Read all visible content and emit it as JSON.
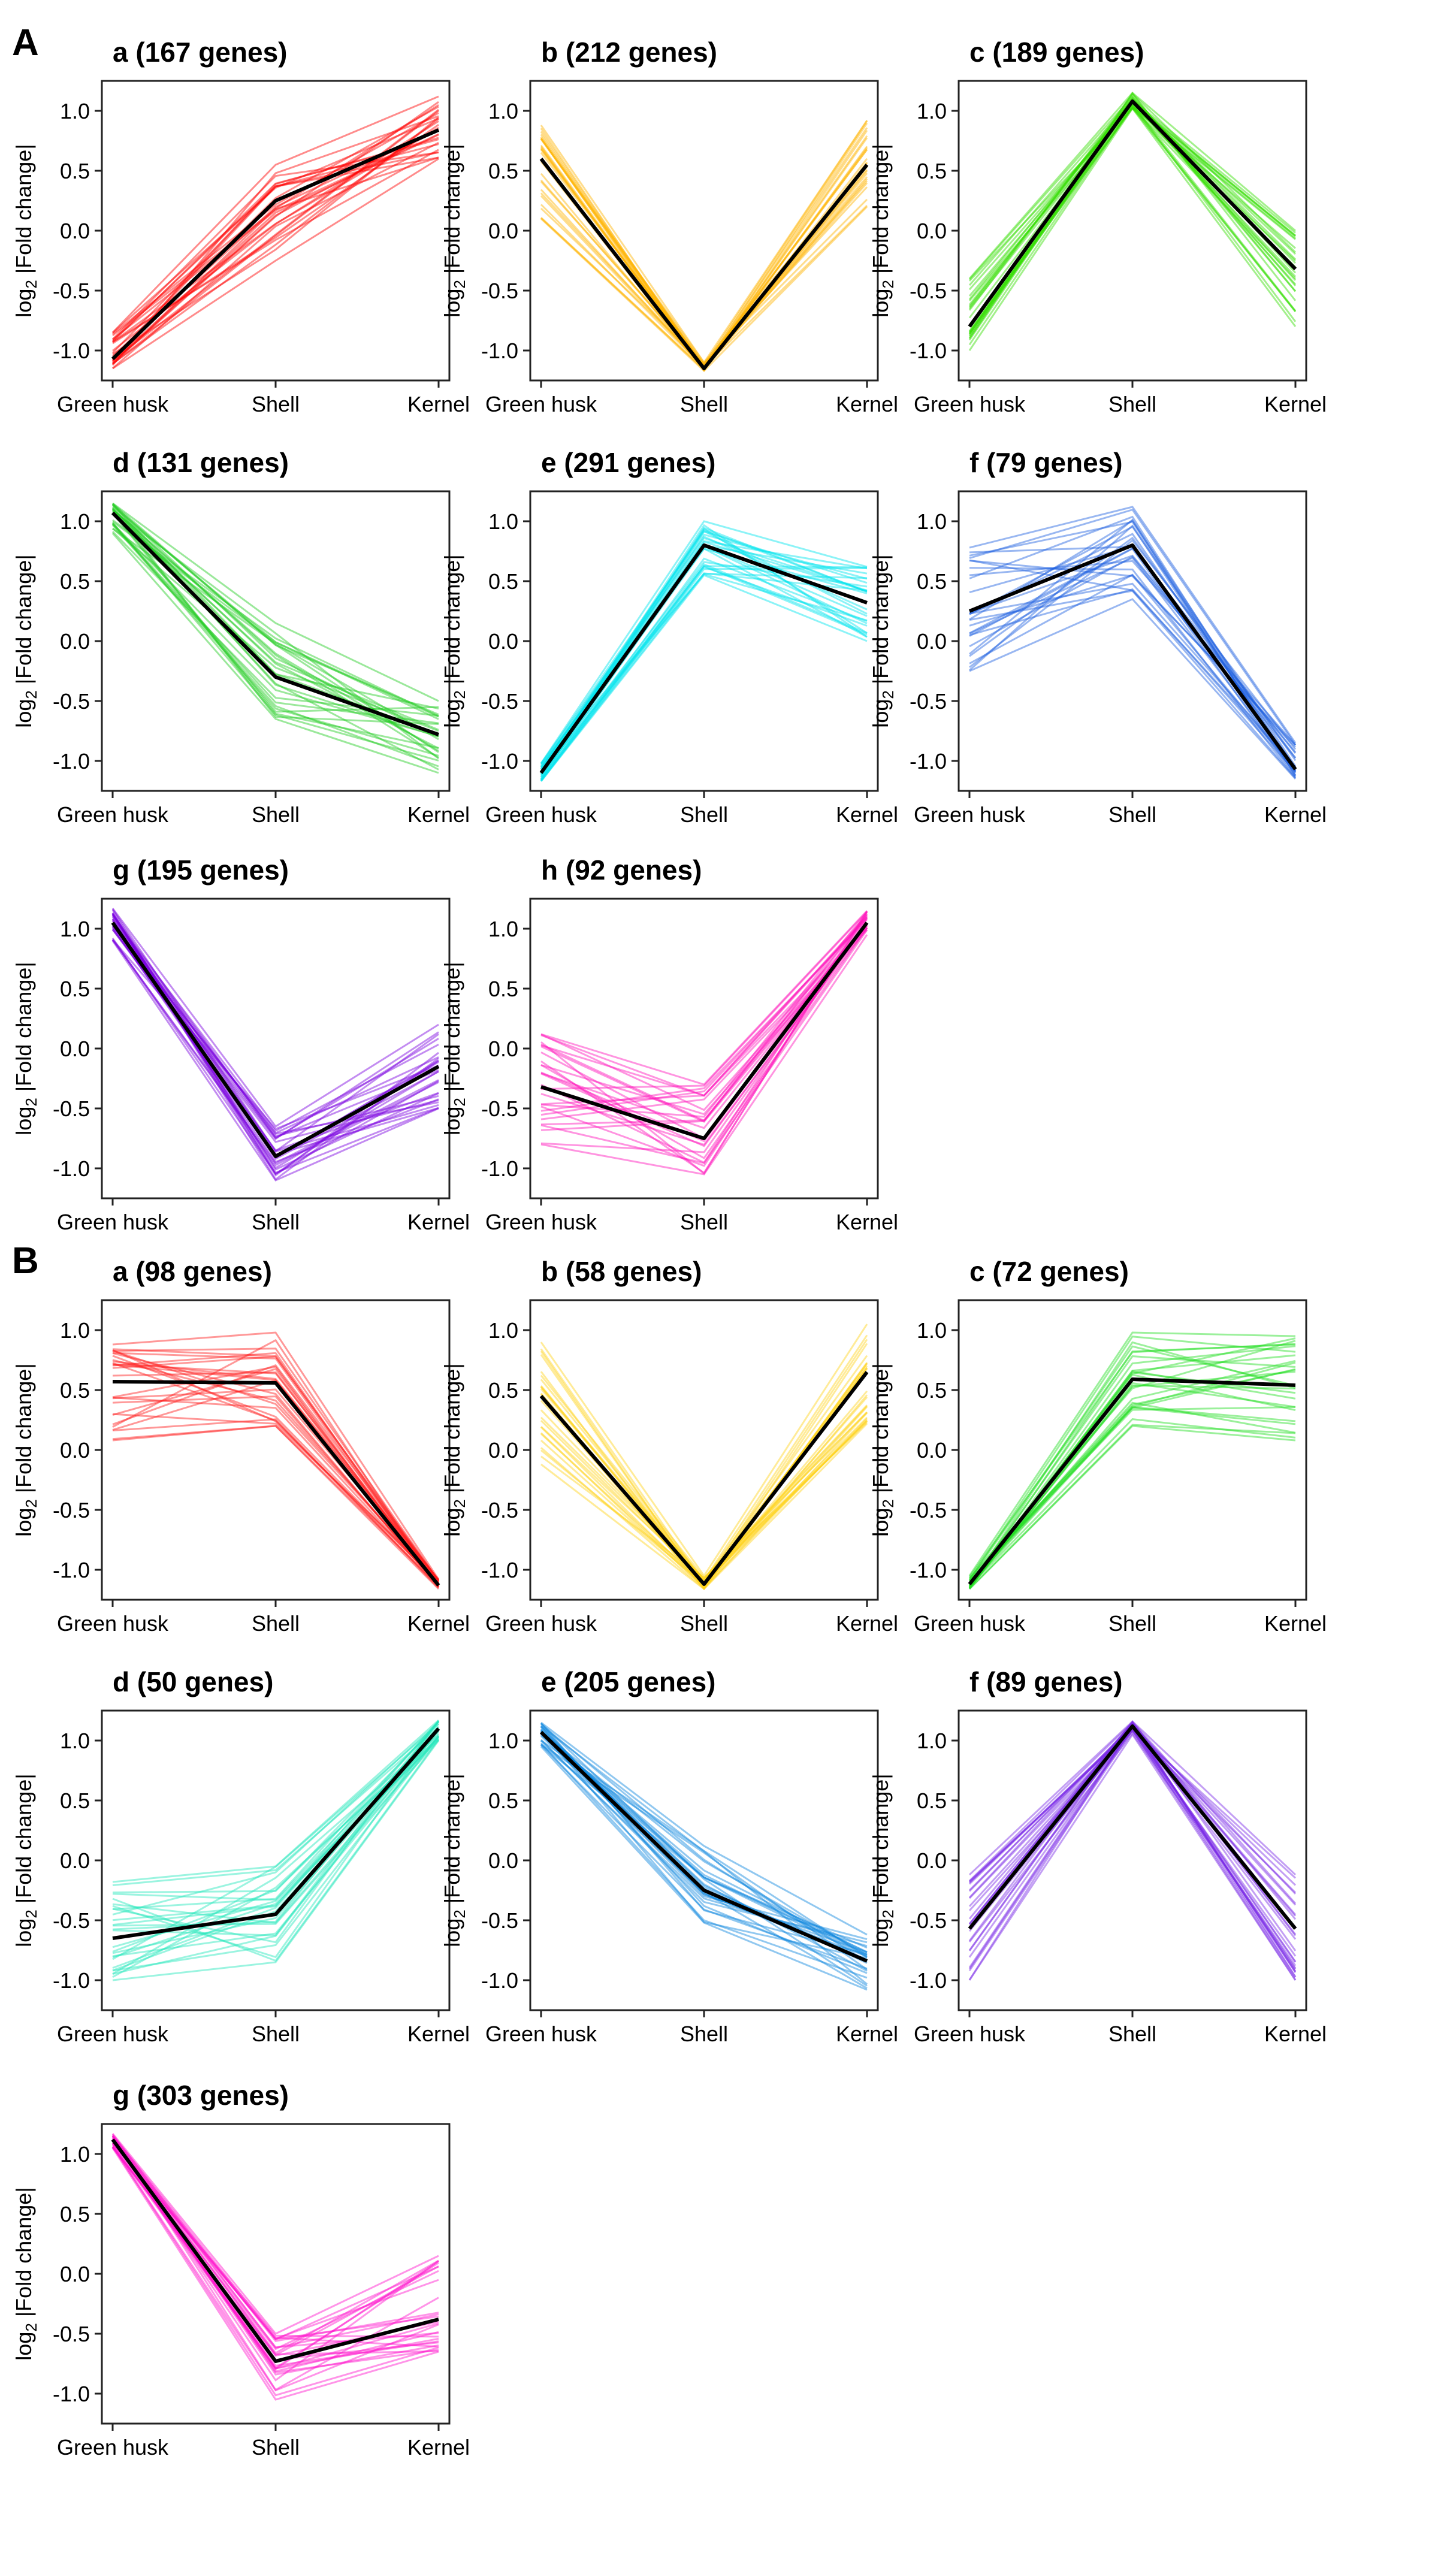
{
  "figure": {
    "groups": [
      {
        "label": "A",
        "chart_indices": [
          0,
          1,
          2,
          3,
          4,
          5,
          6,
          7
        ]
      },
      {
        "label": "B",
        "chart_indices": [
          8,
          9,
          10,
          11,
          12,
          13,
          14
        ]
      }
    ]
  },
  "chart_data": [
    {
      "type": "line",
      "group": "A",
      "title": "a (167 genes)",
      "color": "#ff0000",
      "categories": [
        "Green husk",
        "Shell",
        "Kernel"
      ],
      "ylabel": "log2 |Fold change|",
      "ylim": [
        -1.25,
        1.25
      ],
      "yticks": [
        "1.0",
        "0.5",
        "0.0",
        "-0.5",
        "-1.0"
      ],
      "mean": [
        -1.07,
        0.25,
        0.84
      ],
      "min": [
        -1.15,
        -0.25,
        0.6
      ],
      "max": [
        -0.85,
        0.55,
        1.12
      ]
    },
    {
      "type": "line",
      "group": "A",
      "title": "b (212 genes)",
      "color": "#ffb300",
      "categories": [
        "Green husk",
        "Shell",
        "Kernel"
      ],
      "ylabel": "log2 |Fold change|",
      "ylim": [
        -1.25,
        1.25
      ],
      "yticks": [
        "1.0",
        "0.5",
        "0.0",
        "-0.5",
        "-1.0"
      ],
      "mean": [
        0.6,
        -1.15,
        0.55
      ],
      "min": [
        0.1,
        -1.17,
        0.2
      ],
      "max": [
        0.88,
        -1.1,
        0.92
      ]
    },
    {
      "type": "line",
      "group": "A",
      "title": "c (189 genes)",
      "color": "#33dd00",
      "categories": [
        "Green husk",
        "Shell",
        "Kernel"
      ],
      "ylabel": "log2 |Fold change|",
      "ylim": [
        -1.25,
        1.25
      ],
      "yticks": [
        "1.0",
        "0.5",
        "0.0",
        "-0.5",
        "-1.0"
      ],
      "mean": [
        -0.8,
        1.08,
        -0.32
      ],
      "min": [
        -1.0,
        1.02,
        -0.8
      ],
      "max": [
        -0.4,
        1.15,
        0.0
      ]
    },
    {
      "type": "line",
      "group": "A",
      "title": "d (131 genes)",
      "color": "#22cc22",
      "categories": [
        "Green husk",
        "Shell",
        "Kernel"
      ],
      "ylabel": "log2 |Fold change|",
      "ylim": [
        -1.25,
        1.25
      ],
      "yticks": [
        "1.0",
        "0.5",
        "0.0",
        "-0.5",
        "-1.0"
      ],
      "mean": [
        1.07,
        -0.3,
        -0.78
      ],
      "min": [
        0.9,
        -0.65,
        -1.1
      ],
      "max": [
        1.15,
        0.15,
        -0.5
      ]
    },
    {
      "type": "line",
      "group": "A",
      "title": "e (291 genes)",
      "color": "#00e5ee",
      "categories": [
        "Green husk",
        "Shell",
        "Kernel"
      ],
      "ylabel": "log2 |Fold change|",
      "ylim": [
        -1.25,
        1.25
      ],
      "yticks": [
        "1.0",
        "0.5",
        "0.0",
        "-0.5",
        "-1.0"
      ],
      "mean": [
        -1.1,
        0.8,
        0.32
      ],
      "min": [
        -1.17,
        0.55,
        0.0
      ],
      "max": [
        -1.02,
        1.0,
        0.62
      ]
    },
    {
      "type": "line",
      "group": "A",
      "title": "f (79 genes)",
      "color": "#1c5fe0",
      "categories": [
        "Green husk",
        "Shell",
        "Kernel"
      ],
      "ylabel": "log2 |Fold change|",
      "ylim": [
        -1.25,
        1.25
      ],
      "yticks": [
        "1.0",
        "0.5",
        "0.0",
        "-0.5",
        "-1.0"
      ],
      "mean": [
        0.25,
        0.8,
        -1.07
      ],
      "min": [
        -0.25,
        0.35,
        -1.15
      ],
      "max": [
        0.78,
        1.12,
        -0.85
      ]
    },
    {
      "type": "line",
      "group": "A",
      "title": "g (195 genes)",
      "color": "#7a00e0",
      "categories": [
        "Green husk",
        "Shell",
        "Kernel"
      ],
      "ylabel": "log2 |Fold change|",
      "ylim": [
        -1.25,
        1.25
      ],
      "yticks": [
        "1.0",
        "0.5",
        "0.0",
        "-0.5",
        "-1.0"
      ],
      "mean": [
        1.05,
        -0.9,
        -0.15
      ],
      "min": [
        0.9,
        -1.1,
        -0.5
      ],
      "max": [
        1.17,
        -0.65,
        0.2
      ]
    },
    {
      "type": "line",
      "group": "A",
      "title": "h (92 genes)",
      "color": "#ff11bb",
      "categories": [
        "Green husk",
        "Shell",
        "Kernel"
      ],
      "ylabel": "log2 |Fold change|",
      "ylim": [
        -1.25,
        1.25
      ],
      "yticks": [
        "1.0",
        "0.5",
        "0.0",
        "-0.5",
        "-1.0"
      ],
      "mean": [
        -0.32,
        -0.75,
        1.05
      ],
      "min": [
        -0.8,
        -1.05,
        0.95
      ],
      "max": [
        0.12,
        -0.3,
        1.15
      ]
    },
    {
      "type": "line",
      "group": "B",
      "title": "a (98 genes)",
      "color": "#ff1a1a",
      "categories": [
        "Green husk",
        "Shell",
        "Kernel"
      ],
      "ylabel": "log2 |Fold change|",
      "ylim": [
        -1.25,
        1.25
      ],
      "yticks": [
        "1.0",
        "0.5",
        "0.0",
        "-0.5",
        "-1.0"
      ],
      "mean": [
        0.57,
        0.56,
        -1.13
      ],
      "min": [
        0.08,
        0.2,
        -1.16
      ],
      "max": [
        0.88,
        0.98,
        -1.08
      ]
    },
    {
      "type": "line",
      "group": "B",
      "title": "b (58 genes)",
      "color": "#ffd21a",
      "categories": [
        "Green husk",
        "Shell",
        "Kernel"
      ],
      "ylabel": "log2 |Fold change|",
      "ylim": [
        -1.25,
        1.25
      ],
      "yticks": [
        "1.0",
        "0.5",
        "0.0",
        "-0.5",
        "-1.0"
      ],
      "mean": [
        0.45,
        -1.12,
        0.65
      ],
      "min": [
        -0.12,
        -1.16,
        0.22
      ],
      "max": [
        0.9,
        -1.05,
        1.05
      ]
    },
    {
      "type": "line",
      "group": "B",
      "title": "c (72 genes)",
      "color": "#22dd22",
      "categories": [
        "Green husk",
        "Shell",
        "Kernel"
      ],
      "ylabel": "log2 |Fold change|",
      "ylim": [
        -1.25,
        1.25
      ],
      "yticks": [
        "1.0",
        "0.5",
        "0.0",
        "-0.5",
        "-1.0"
      ],
      "mean": [
        -1.12,
        0.59,
        0.54
      ],
      "min": [
        -1.16,
        0.2,
        0.08
      ],
      "max": [
        -1.05,
        0.98,
        0.95
      ]
    },
    {
      "type": "line",
      "group": "B",
      "title": "d (50 genes)",
      "color": "#22e6bb",
      "categories": [
        "Green husk",
        "Shell",
        "Kernel"
      ],
      "ylabel": "log2 |Fold change|",
      "ylim": [
        -1.25,
        1.25
      ],
      "yticks": [
        "1.0",
        "0.5",
        "0.0",
        "-0.5",
        "-1.0"
      ],
      "mean": [
        -0.65,
        -0.45,
        1.1
      ],
      "min": [
        -1.0,
        -0.85,
        1.0
      ],
      "max": [
        -0.18,
        -0.05,
        1.17
      ]
    },
    {
      "type": "line",
      "group": "B",
      "title": "e (205 genes)",
      "color": "#0a86dd",
      "categories": [
        "Green husk",
        "Shell",
        "Kernel"
      ],
      "ylabel": "log2 |Fold change|",
      "ylim": [
        -1.25,
        1.25
      ],
      "yticks": [
        "1.0",
        "0.5",
        "0.0",
        "-0.5",
        "-1.0"
      ],
      "mean": [
        1.07,
        -0.25,
        -0.84
      ],
      "min": [
        0.95,
        -0.52,
        -1.08
      ],
      "max": [
        1.15,
        0.12,
        -0.62
      ]
    },
    {
      "type": "line",
      "group": "B",
      "title": "f (89 genes)",
      "color": "#7a2ae6",
      "categories": [
        "Green husk",
        "Shell",
        "Kernel"
      ],
      "ylabel": "log2 |Fold change|",
      "ylim": [
        -1.25,
        1.25
      ],
      "yticks": [
        "1.0",
        "0.5",
        "0.0",
        "-0.5",
        "-1.0"
      ],
      "mean": [
        -0.57,
        1.12,
        -0.57
      ],
      "min": [
        -1.0,
        1.05,
        -1.0
      ],
      "max": [
        -0.12,
        1.16,
        -0.12
      ]
    },
    {
      "type": "line",
      "group": "B",
      "title": "g (303 genes)",
      "color": "#ff11cc",
      "categories": [
        "Green husk",
        "Shell",
        "Kernel"
      ],
      "ylabel": "log2 |Fold change|",
      "ylim": [
        -1.25,
        1.25
      ],
      "yticks": [
        "1.0",
        "0.5",
        "0.0",
        "-0.5",
        "-1.0"
      ],
      "mean": [
        1.12,
        -0.73,
        -0.38
      ],
      "min": [
        1.05,
        -1.05,
        -0.65
      ],
      "max": [
        1.17,
        -0.5,
        0.15
      ]
    }
  ]
}
